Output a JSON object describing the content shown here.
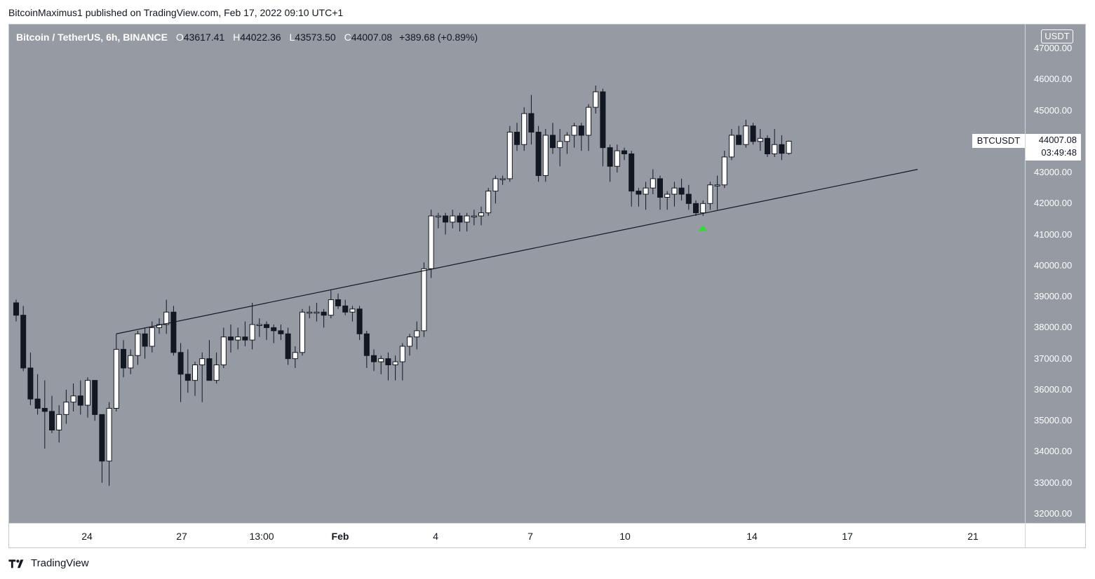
{
  "header": {
    "publisher_line": "BitcoinMaximus1 published on TradingView.com, Feb 17, 2022 09:10 UTC+1"
  },
  "legend": {
    "symbol_line": "Bitcoin / TetherUS, 6h, BINANCE",
    "o_label": "O",
    "o_value": "43617.41",
    "h_label": "H",
    "h_value": "44022.36",
    "l_label": "L",
    "l_value": "43573.50",
    "c_label": "C",
    "c_value": "44007.08",
    "change": "+389.68 (+0.89%)"
  },
  "price_axis": {
    "currency": "USDT",
    "labels": [
      "47000.00",
      "46000.00",
      "45000.00",
      "44000.00",
      "43000.00",
      "42000.00",
      "41000.00",
      "40000.00",
      "39000.00",
      "38000.00",
      "37000.00",
      "36000.00",
      "35000.00",
      "34000.00",
      "33000.00",
      "32000.00"
    ]
  },
  "last_price": {
    "symbol": "BTCUSDT",
    "price": "44007.08",
    "countdown": "03:49:48"
  },
  "time_axis": {
    "labels": [
      {
        "text": "24",
        "bold": false
      },
      {
        "text": "27",
        "bold": false
      },
      {
        "text": "13:00",
        "bold": false
      },
      {
        "text": "Feb",
        "bold": true
      },
      {
        "text": "4",
        "bold": false
      },
      {
        "text": "7",
        "bold": false
      },
      {
        "text": "10",
        "bold": false
      },
      {
        "text": "14",
        "bold": false
      },
      {
        "text": "17",
        "bold": false
      },
      {
        "text": "21",
        "bold": false
      }
    ]
  },
  "footer": {
    "brand": "TradingView"
  },
  "colors": {
    "background": "#969aa3",
    "up_candle": "#ffffff",
    "down_candle": "#131722",
    "wick": "#131722",
    "trendline": "#131722",
    "marker": "#26e02b"
  },
  "chart_data": {
    "type": "candlestick",
    "title": "Bitcoin / TetherUS, 6h, BINANCE",
    "ylabel": "USDT",
    "ylim": [
      31700,
      47400
    ],
    "x_tick_labels": [
      "24",
      "27",
      "13:00",
      "Feb",
      "4",
      "7",
      "10",
      "14",
      "17",
      "21"
    ],
    "candles": [
      {
        "o": 38800,
        "h": 38900,
        "l": 38200,
        "c": 38400
      },
      {
        "o": 38400,
        "h": 38700,
        "l": 36600,
        "c": 36700
      },
      {
        "o": 36700,
        "h": 37200,
        "l": 35500,
        "c": 35700
      },
      {
        "o": 35700,
        "h": 36500,
        "l": 35200,
        "c": 35400
      },
      {
        "o": 35400,
        "h": 36300,
        "l": 34100,
        "c": 35300
      },
      {
        "o": 35300,
        "h": 35800,
        "l": 34600,
        "c": 34700
      },
      {
        "o": 34700,
        "h": 35500,
        "l": 34300,
        "c": 35200
      },
      {
        "o": 35200,
        "h": 36000,
        "l": 34900,
        "c": 35600
      },
      {
        "o": 35600,
        "h": 36200,
        "l": 35300,
        "c": 35800
      },
      {
        "o": 35800,
        "h": 36300,
        "l": 35200,
        "c": 35500
      },
      {
        "o": 35500,
        "h": 36400,
        "l": 35100,
        "c": 36300
      },
      {
        "o": 36300,
        "h": 36300,
        "l": 35000,
        "c": 35200
      },
      {
        "o": 35200,
        "h": 35200,
        "l": 33000,
        "c": 33700
      },
      {
        "o": 33700,
        "h": 35600,
        "l": 32900,
        "c": 35400
      },
      {
        "o": 35400,
        "h": 37800,
        "l": 35300,
        "c": 37300
      },
      {
        "o": 37300,
        "h": 37600,
        "l": 36400,
        "c": 36700
      },
      {
        "o": 36700,
        "h": 37300,
        "l": 36500,
        "c": 37100
      },
      {
        "o": 37100,
        "h": 37900,
        "l": 36800,
        "c": 37800
      },
      {
        "o": 37800,
        "h": 38000,
        "l": 37000,
        "c": 37400
      },
      {
        "o": 37400,
        "h": 38200,
        "l": 37200,
        "c": 38000
      },
      {
        "o": 38000,
        "h": 38300,
        "l": 37800,
        "c": 38100
      },
      {
        "o": 38100,
        "h": 38900,
        "l": 37800,
        "c": 38500
      },
      {
        "o": 38500,
        "h": 38700,
        "l": 37100,
        "c": 37200
      },
      {
        "o": 37200,
        "h": 37500,
        "l": 35600,
        "c": 36500
      },
      {
        "o": 36500,
        "h": 37300,
        "l": 35900,
        "c": 36300
      },
      {
        "o": 36300,
        "h": 36900,
        "l": 35800,
        "c": 36800
      },
      {
        "o": 36800,
        "h": 37200,
        "l": 35600,
        "c": 37000
      },
      {
        "o": 37000,
        "h": 37600,
        "l": 36400,
        "c": 36300
      },
      {
        "o": 36300,
        "h": 37200,
        "l": 36200,
        "c": 36800
      },
      {
        "o": 36800,
        "h": 38000,
        "l": 36700,
        "c": 37700
      },
      {
        "o": 37700,
        "h": 38100,
        "l": 37200,
        "c": 37600
      },
      {
        "o": 37600,
        "h": 38000,
        "l": 37300,
        "c": 37700
      },
      {
        "o": 37700,
        "h": 38200,
        "l": 37400,
        "c": 37600
      },
      {
        "o": 37600,
        "h": 38800,
        "l": 37300,
        "c": 38100
      },
      {
        "o": 38100,
        "h": 38300,
        "l": 37700,
        "c": 38100
      },
      {
        "o": 38100,
        "h": 38200,
        "l": 37600,
        "c": 38000
      },
      {
        "o": 38000,
        "h": 38100,
        "l": 37500,
        "c": 37900
      },
      {
        "o": 37900,
        "h": 38100,
        "l": 37600,
        "c": 37800
      },
      {
        "o": 37800,
        "h": 38000,
        "l": 36800,
        "c": 37000
      },
      {
        "o": 37000,
        "h": 37400,
        "l": 36700,
        "c": 37200
      },
      {
        "o": 37200,
        "h": 38600,
        "l": 37100,
        "c": 38500
      },
      {
        "o": 38500,
        "h": 38700,
        "l": 38300,
        "c": 38500
      },
      {
        "o": 38500,
        "h": 38800,
        "l": 38200,
        "c": 38500
      },
      {
        "o": 38500,
        "h": 38600,
        "l": 38000,
        "c": 38400
      },
      {
        "o": 38400,
        "h": 39200,
        "l": 38300,
        "c": 38900
      },
      {
        "o": 38900,
        "h": 39100,
        "l": 38600,
        "c": 38700
      },
      {
        "o": 38700,
        "h": 38900,
        "l": 38400,
        "c": 38500
      },
      {
        "o": 38500,
        "h": 38700,
        "l": 38200,
        "c": 38600
      },
      {
        "o": 38600,
        "h": 38700,
        "l": 37600,
        "c": 37800
      },
      {
        "o": 37800,
        "h": 37900,
        "l": 36700,
        "c": 37100
      },
      {
        "o": 37100,
        "h": 37300,
        "l": 36600,
        "c": 36900
      },
      {
        "o": 36900,
        "h": 37100,
        "l": 36500,
        "c": 37000
      },
      {
        "o": 37000,
        "h": 37200,
        "l": 36300,
        "c": 36800
      },
      {
        "o": 36800,
        "h": 37100,
        "l": 36300,
        "c": 36900
      },
      {
        "o": 36900,
        "h": 37500,
        "l": 36300,
        "c": 37400
      },
      {
        "o": 37400,
        "h": 37800,
        "l": 37100,
        "c": 37700
      },
      {
        "o": 37700,
        "h": 38200,
        "l": 37300,
        "c": 37900
      },
      {
        "o": 37900,
        "h": 40100,
        "l": 37700,
        "c": 39900
      },
      {
        "o": 39900,
        "h": 41800,
        "l": 39600,
        "c": 41600
      },
      {
        "o": 41600,
        "h": 41700,
        "l": 41200,
        "c": 41600
      },
      {
        "o": 41600,
        "h": 41700,
        "l": 41000,
        "c": 41400
      },
      {
        "o": 41400,
        "h": 41800,
        "l": 41200,
        "c": 41600
      },
      {
        "o": 41600,
        "h": 41700,
        "l": 41100,
        "c": 41400
      },
      {
        "o": 41400,
        "h": 41700,
        "l": 41100,
        "c": 41600
      },
      {
        "o": 41600,
        "h": 41800,
        "l": 41300,
        "c": 41600
      },
      {
        "o": 41600,
        "h": 41900,
        "l": 41300,
        "c": 41700
      },
      {
        "o": 41700,
        "h": 42500,
        "l": 41600,
        "c": 42400
      },
      {
        "o": 42400,
        "h": 42900,
        "l": 42000,
        "c": 42800
      },
      {
        "o": 42800,
        "h": 42900,
        "l": 42600,
        "c": 42800
      },
      {
        "o": 42800,
        "h": 44500,
        "l": 42700,
        "c": 44300
      },
      {
        "o": 44300,
        "h": 44600,
        "l": 43700,
        "c": 43900
      },
      {
        "o": 43900,
        "h": 45100,
        "l": 43700,
        "c": 44900
      },
      {
        "o": 44900,
        "h": 45500,
        "l": 43900,
        "c": 44300
      },
      {
        "o": 44300,
        "h": 44500,
        "l": 42700,
        "c": 42900
      },
      {
        "o": 42900,
        "h": 44400,
        "l": 42700,
        "c": 44200
      },
      {
        "o": 44200,
        "h": 44600,
        "l": 43600,
        "c": 43800
      },
      {
        "o": 43800,
        "h": 44400,
        "l": 43200,
        "c": 44000
      },
      {
        "o": 44000,
        "h": 44300,
        "l": 43600,
        "c": 44200
      },
      {
        "o": 44200,
        "h": 44600,
        "l": 43800,
        "c": 44500
      },
      {
        "o": 44500,
        "h": 44600,
        "l": 43700,
        "c": 44200
      },
      {
        "o": 44200,
        "h": 45200,
        "l": 43700,
        "c": 45100
      },
      {
        "o": 45100,
        "h": 45800,
        "l": 44900,
        "c": 45600
      },
      {
        "o": 45600,
        "h": 45700,
        "l": 43200,
        "c": 43800
      },
      {
        "o": 43800,
        "h": 43900,
        "l": 42700,
        "c": 43200
      },
      {
        "o": 43200,
        "h": 43900,
        "l": 43000,
        "c": 43700
      },
      {
        "o": 43700,
        "h": 43800,
        "l": 43400,
        "c": 43600
      },
      {
        "o": 43600,
        "h": 43700,
        "l": 41900,
        "c": 42400
      },
      {
        "o": 42400,
        "h": 42500,
        "l": 41900,
        "c": 42300
      },
      {
        "o": 42300,
        "h": 42700,
        "l": 41800,
        "c": 42500
      },
      {
        "o": 42500,
        "h": 43100,
        "l": 42300,
        "c": 42800
      },
      {
        "o": 42800,
        "h": 42900,
        "l": 41800,
        "c": 42200
      },
      {
        "o": 42200,
        "h": 42400,
        "l": 41800,
        "c": 42300
      },
      {
        "o": 42300,
        "h": 42700,
        "l": 41900,
        "c": 42500
      },
      {
        "o": 42500,
        "h": 42800,
        "l": 42100,
        "c": 42300
      },
      {
        "o": 42300,
        "h": 42600,
        "l": 41800,
        "c": 42000
      },
      {
        "o": 42000,
        "h": 42100,
        "l": 41600,
        "c": 41700
      },
      {
        "o": 41700,
        "h": 42100,
        "l": 41600,
        "c": 42000
      },
      {
        "o": 42000,
        "h": 42700,
        "l": 41800,
        "c": 42600
      },
      {
        "o": 42600,
        "h": 42900,
        "l": 41800,
        "c": 42600
      },
      {
        "o": 42600,
        "h": 43700,
        "l": 42500,
        "c": 43500
      },
      {
        "o": 43500,
        "h": 44400,
        "l": 43400,
        "c": 44200
      },
      {
        "o": 44200,
        "h": 44500,
        "l": 43900,
        "c": 43900
      },
      {
        "o": 43900,
        "h": 44700,
        "l": 43800,
        "c": 44500
      },
      {
        "o": 44500,
        "h": 44600,
        "l": 43900,
        "c": 44000
      },
      {
        "o": 44000,
        "h": 44400,
        "l": 43700,
        "c": 44100
      },
      {
        "o": 44100,
        "h": 44200,
        "l": 43500,
        "c": 43600
      },
      {
        "o": 43600,
        "h": 44400,
        "l": 43500,
        "c": 43900
      },
      {
        "o": 43900,
        "h": 44200,
        "l": 43400,
        "c": 43617
      },
      {
        "o": 43617.41,
        "h": 44022.36,
        "l": 43573.5,
        "c": 44007.08
      }
    ],
    "trendline": {
      "start_candle": 14,
      "start_price": 37800,
      "end_candle": 126,
      "end_price": 43100
    },
    "marker": {
      "candle": 96,
      "price": 41200,
      "shape": "up-triangle"
    }
  }
}
